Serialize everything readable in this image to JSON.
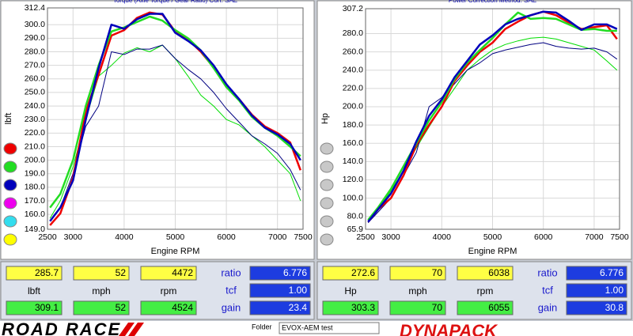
{
  "chart_data": [
    {
      "type": "line",
      "title": "Torque (Axle Torque / Gear Ratio)   Corr. SAE",
      "x_label": "Engine RPM",
      "y_label": "lbft",
      "x": [
        2550,
        2750,
        3000,
        3250,
        3500,
        3750,
        4000,
        4250,
        4500,
        4750,
        5000,
        5250,
        5500,
        5750,
        6000,
        6250,
        6500,
        6750,
        7000,
        7250,
        7450
      ],
      "series": [
        {
          "color": "#00dd00",
          "line_width": 1,
          "values": [
            157,
            170,
            195,
            230,
            262,
            270,
            279,
            283,
            280,
            285,
            275,
            262,
            248,
            240,
            230,
            226,
            218,
            210,
            200,
            190,
            170
          ]
        },
        {
          "color": "#000080",
          "line_width": 1,
          "values": [
            155,
            165,
            190,
            225,
            240,
            280,
            278,
            282,
            282,
            285,
            275,
            267,
            260,
            250,
            238,
            228,
            218,
            212,
            205,
            193,
            178
          ]
        },
        {
          "color": "#ee0000",
          "line_width": 2.5,
          "values": [
            152,
            160.6,
            187,
            236,
            263,
            292,
            296,
            305,
            309,
            307.5,
            295,
            289,
            280,
            268.5,
            254,
            245,
            233.5,
            225,
            220,
            213,
            192.6
          ]
        },
        {
          "color": "#22dd22",
          "line_width": 2.5,
          "values": [
            165,
            175,
            200,
            240,
            270,
            295,
            298,
            302,
            306,
            303,
            296,
            290,
            281,
            268,
            254,
            244,
            232,
            224,
            218,
            210,
            203
          ]
        },
        {
          "color": "#0000bb",
          "line_width": 2.5,
          "values": [
            155,
            165,
            185,
            230,
            268,
            300,
            297,
            304,
            308,
            308,
            294,
            288,
            281,
            270,
            256,
            245,
            233,
            224,
            219,
            212,
            200
          ]
        }
      ],
      "xlim": [
        2500,
        7500
      ],
      "xticks": [
        2500,
        3000,
        4000,
        5000,
        6000,
        7000,
        7500
      ],
      "ylim": [
        149,
        312.4
      ],
      "yticks": [
        {
          "value": 149,
          "label": "149.0"
        },
        {
          "value": 160,
          "label": "160.0"
        },
        {
          "value": 170,
          "label": "170.0"
        },
        {
          "value": 180,
          "label": "180.0"
        },
        {
          "value": 190,
          "label": "190.0"
        },
        {
          "value": 200,
          "label": "200.0"
        },
        {
          "value": 210,
          "label": "210.0"
        },
        {
          "value": 220,
          "label": "220.0"
        },
        {
          "value": 230,
          "label": "230.0"
        },
        {
          "value": 240,
          "label": "240.0"
        },
        {
          "value": 250,
          "label": "250.0"
        },
        {
          "value": 260,
          "label": "260.0"
        },
        {
          "value": 270,
          "label": "270.0"
        },
        {
          "value": 280,
          "label": "280.0"
        },
        {
          "value": 290,
          "label": "290.0"
        },
        {
          "value": 300,
          "label": "300.0"
        },
        312.4
      ],
      "grid": true,
      "legend_dot_colors": [
        "#ee0000",
        "#22dd22",
        "#0000bb",
        "#ee00ee",
        "#33ddee",
        "#ffff00"
      ]
    },
    {
      "type": "line",
      "title": "Power   Correction Method: SAE",
      "x_label": "Engine RPM",
      "y_label": "Hp",
      "x": [
        2550,
        2750,
        3000,
        3250,
        3500,
        3750,
        4000,
        4250,
        4500,
        4750,
        5000,
        5250,
        5500,
        5750,
        6000,
        6250,
        6500,
        6750,
        7000,
        7250,
        7450
      ],
      "series": [
        {
          "color": "#00dd00",
          "line_width": 1,
          "values": [
            74,
            88,
            108,
            130,
            155,
            178,
            200,
            220,
            240,
            252,
            262,
            268,
            272,
            275,
            276,
            274,
            270,
            266,
            262,
            250,
            240
          ]
        },
        {
          "color": "#000080",
          "line_width": 1,
          "values": [
            73,
            85,
            100,
            125,
            150,
            200,
            210,
            225,
            240,
            248,
            258,
            262,
            265,
            268,
            270,
            266,
            264,
            263,
            264,
            260,
            252
          ]
        },
        {
          "color": "#ee0000",
          "line_width": 2.5,
          "values": [
            74,
            88,
            100,
            125,
            158,
            180,
            200,
            228,
            245,
            260,
            270,
            285,
            293,
            300,
            304,
            300,
            292,
            285,
            287,
            289,
            274
          ]
        },
        {
          "color": "#22dd22",
          "line_width": 2.5,
          "values": [
            76,
            90,
            110,
            135,
            160,
            185,
            205,
            230,
            248,
            262,
            275,
            290,
            303,
            296,
            297,
            296,
            290,
            284,
            285,
            283,
            283
          ]
        },
        {
          "color": "#0000bb",
          "line_width": 2.5,
          "values": [
            74,
            88,
            105,
            130,
            162,
            190,
            208,
            232,
            250,
            268,
            278,
            290,
            296,
            300,
            304,
            303,
            294,
            284,
            290,
            290,
            285
          ]
        }
      ],
      "xlim": [
        2500,
        7500
      ],
      "xticks": [
        2500,
        3000,
        4000,
        5000,
        6000,
        7000,
        7500
      ],
      "ylim": [
        65.9,
        307.2
      ],
      "yticks": [
        65.9,
        {
          "value": 80,
          "label": "80.0"
        },
        {
          "value": 100,
          "label": "100.0"
        },
        {
          "value": 120,
          "label": "120.0"
        },
        {
          "value": 140,
          "label": "140.0"
        },
        {
          "value": 160,
          "label": "160.0"
        },
        {
          "value": 180,
          "label": "180.0"
        },
        {
          "value": 200,
          "label": "200.0"
        },
        {
          "value": 220,
          "label": "220.0"
        },
        {
          "value": 240,
          "label": "240.0"
        },
        {
          "value": 260,
          "label": "260.0"
        },
        {
          "value": 280,
          "label": "280.0"
        },
        307.2
      ],
      "grid": true,
      "legend_dot_colors": [
        "#c8c8c8",
        "#c8c8c8",
        "#c8c8c8",
        "#c8c8c8",
        "#c8c8c8",
        "#c8c8c8"
      ]
    }
  ],
  "readouts": [
    {
      "top": [
        "285.7",
        "52",
        "4472"
      ],
      "labels": [
        "lbft",
        "mph",
        "rpm"
      ],
      "bottom": [
        "309.1",
        "52",
        "4524"
      ],
      "side_labels": [
        "ratio",
        "tcf",
        "gain"
      ],
      "side_values": [
        "6.776",
        "1.00",
        "23.4"
      ]
    },
    {
      "top": [
        "272.6",
        "70",
        "6038"
      ],
      "labels": [
        "Hp",
        "mph",
        "rpm"
      ],
      "bottom": [
        "303.3",
        "70",
        "6055"
      ],
      "side_labels": [
        "ratio",
        "tcf",
        "gain"
      ],
      "side_values": [
        "6.776",
        "1.00",
        "30.8"
      ]
    }
  ],
  "footer": {
    "logo": "ROAD RACE",
    "folder_label": "Folder",
    "folder": "EVOX-AEM test",
    "brand": "DYNAPACK"
  }
}
